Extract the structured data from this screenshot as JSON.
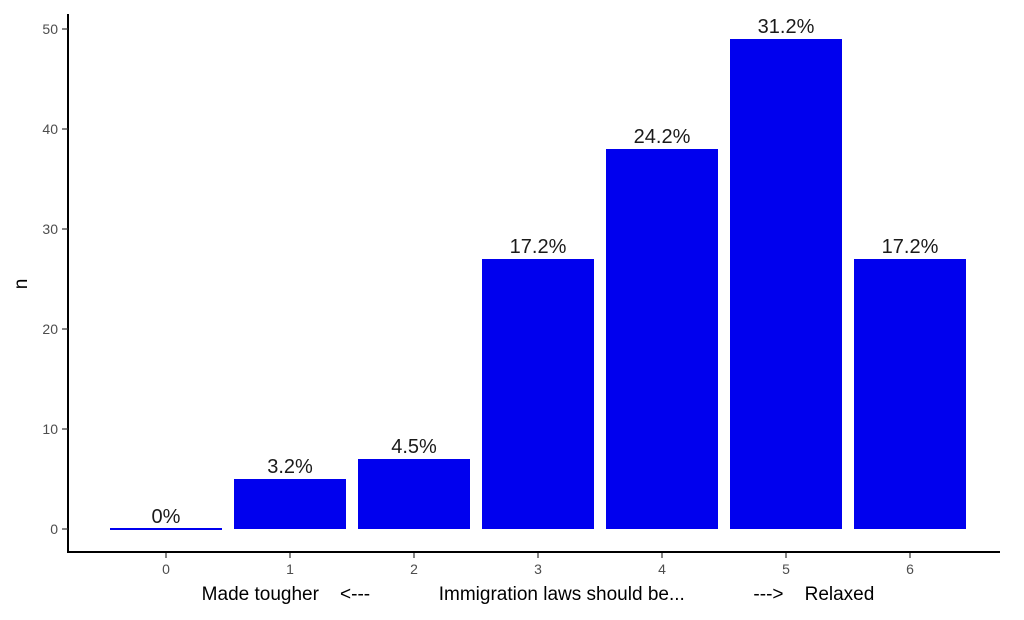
{
  "chart_data": {
    "type": "bar",
    "categories": [
      "0",
      "1",
      "2",
      "3",
      "4",
      "5",
      "6"
    ],
    "values": [
      0,
      5,
      7,
      27,
      38,
      49,
      27
    ],
    "data_labels": [
      "0%",
      "3.2%",
      "4.5%",
      "17.2%",
      "24.2%",
      "31.2%",
      "17.2%"
    ],
    "title": "",
    "xlabel": "Made tougher    <---             Immigration laws should be...             --->    Relaxed",
    "ylabel": "n",
    "ylim": [
      0,
      50
    ],
    "yticks": [
      0,
      10,
      20,
      30,
      40,
      50
    ],
    "grid": false,
    "legend": "none",
    "colors": {
      "bar": "#0000ee",
      "axis": "#000000",
      "tick_text": "#4d4d4d",
      "label_text": "#1a1a1a"
    }
  }
}
